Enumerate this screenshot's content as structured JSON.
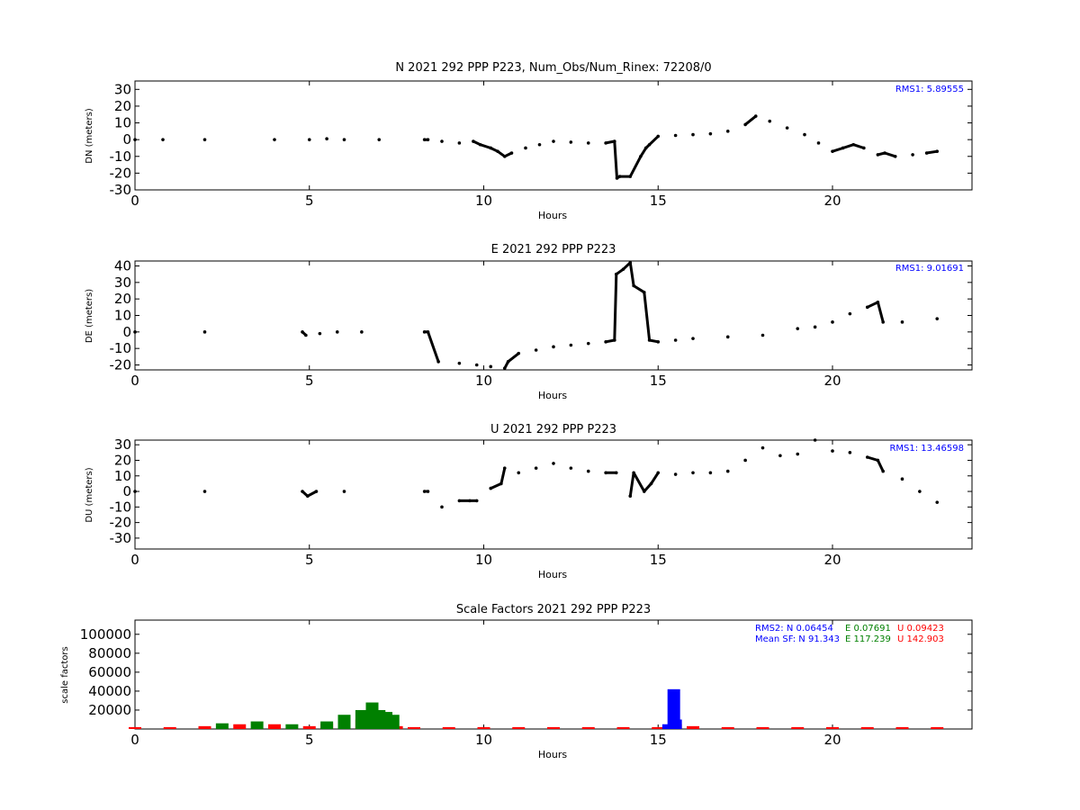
{
  "chart_data": [
    {
      "type": "scatter",
      "title": "N 2021 292 PPP  P223, Num_Obs/Num_Rinex: 72208/0",
      "xlabel": "Hours",
      "ylabel": "DN (meters)",
      "xlim": [
        0,
        24
      ],
      "ylim": [
        -30,
        35
      ],
      "xticks": [
        0,
        5,
        10,
        15,
        20
      ],
      "yticks": [
        -30,
        -20,
        -10,
        0,
        10,
        20,
        30
      ],
      "annotation": "RMS1:  5.89555",
      "annotation_color": "#0000ff",
      "series": [
        {
          "color": "#000000",
          "x": [
            0,
            0.8,
            2,
            4,
            5,
            5.5,
            6,
            7,
            8.3,
            8.4,
            8.8,
            9.3,
            9.7,
            9.9,
            10.2,
            10.4,
            10.6,
            10.8,
            11.2,
            11.6,
            12,
            12.5,
            13,
            13.5,
            13.75,
            13.82,
            13.9,
            14.2,
            14.5,
            14.65,
            14.75,
            15,
            15.5,
            16,
            16.5,
            17,
            17.5,
            17.8,
            18.2,
            18.7,
            19.2,
            19.6,
            20,
            20.3,
            20.6,
            20.9,
            21.3,
            21.5,
            21.8,
            22.3,
            22.7,
            23
          ],
          "y": [
            0,
            0,
            0,
            0,
            0,
            0.5,
            0,
            0,
            0,
            0,
            -1,
            -2,
            -1,
            -3,
            -5,
            -7,
            -10,
            -8,
            -5,
            -3,
            -1,
            -1.5,
            -2,
            -2,
            -1,
            -23,
            -22,
            -22,
            -10,
            -5,
            -3,
            2,
            2.5,
            3,
            3.5,
            5,
            9,
            14,
            11,
            7,
            3,
            -2,
            -7,
            -5,
            -3,
            -5,
            -9,
            -8,
            -10,
            -9,
            -8,
            -7
          ]
        }
      ]
    },
    {
      "type": "scatter",
      "title": "E 2021 292 PPP  P223",
      "xlabel": "Hours",
      "ylabel": "DE (meters)",
      "xlim": [
        0,
        24
      ],
      "ylim": [
        -23,
        43
      ],
      "xticks": [
        0,
        5,
        10,
        15,
        20
      ],
      "yticks": [
        -20,
        -10,
        0,
        10,
        20,
        30,
        40
      ],
      "annotation": "RMS1:  9.01691",
      "annotation_color": "#0000ff",
      "series": [
        {
          "color": "#000000",
          "x": [
            0,
            2,
            4.8,
            4.9,
            5.3,
            5.8,
            6.5,
            8.3,
            8.4,
            8.7,
            9.3,
            9.8,
            10.2,
            10.6,
            10.7,
            11,
            11.5,
            12,
            12.5,
            13,
            13.5,
            13.75,
            13.8,
            14,
            14.2,
            14.3,
            14.6,
            14.75,
            15,
            15.5,
            16,
            17,
            18,
            19,
            19.5,
            20,
            20.5,
            21,
            21.3,
            21.45,
            22,
            23
          ],
          "y": [
            0,
            0,
            0,
            -2,
            -1,
            0,
            0,
            0,
            0,
            -18,
            -19,
            -20,
            -21,
            -22,
            -18,
            -13,
            -11,
            -9,
            -8,
            -7,
            -6,
            -5,
            35,
            38,
            42,
            28,
            24,
            -5,
            -6,
            -5,
            -4,
            -3,
            -2,
            2,
            3,
            6,
            11,
            15,
            18,
            6,
            6,
            8
          ]
        }
      ]
    },
    {
      "type": "scatter",
      "title": "U 2021 292 PPP  P223",
      "xlabel": "Hours",
      "ylabel": "DU (meters)",
      "xlim": [
        0,
        24
      ],
      "ylim": [
        -37,
        33
      ],
      "xticks": [
        0,
        5,
        10,
        15,
        20
      ],
      "yticks": [
        -30,
        -20,
        -10,
        0,
        10,
        20,
        30
      ],
      "annotation": "RMS1: 13.46598",
      "annotation_color": "#0000ff",
      "series": [
        {
          "color": "#000000",
          "x": [
            0,
            2,
            4.8,
            4.95,
            5.2,
            6,
            8.3,
            8.4,
            8.8,
            9.3,
            9.6,
            9.8,
            10.2,
            10.5,
            10.6,
            11,
            11.5,
            12,
            12.5,
            13,
            13.5,
            13.8,
            14.2,
            14.3,
            14.6,
            14.8,
            15,
            15.5,
            16,
            16.5,
            17,
            17.5,
            18,
            18.5,
            19,
            19.5,
            20,
            20.5,
            21,
            21.3,
            21.45,
            22,
            22.5,
            23
          ],
          "y": [
            0,
            0,
            0,
            -3,
            0,
            0,
            0,
            0,
            -10,
            -6,
            -6,
            -6,
            2,
            5,
            15,
            12,
            15,
            18,
            15,
            13,
            12,
            12,
            -3,
            12,
            0,
            5,
            12,
            11,
            12,
            12,
            13,
            20,
            28,
            23,
            24,
            33,
            26,
            25,
            22,
            20,
            13,
            8,
            0,
            -7
          ]
        }
      ]
    },
    {
      "type": "bar",
      "title": "Scale Factors 2021 292 PPP  P223",
      "xlabel": "Hours",
      "ylabel": "scale factors",
      "xlim": [
        0,
        24
      ],
      "ylim": [
        0,
        115000
      ],
      "xticks": [
        0,
        5,
        10,
        15,
        20
      ],
      "yticks": [
        20000,
        40000,
        60000,
        80000,
        100000
      ],
      "annotations": [
        {
          "text": "RMS2: N  0.06454",
          "color": "#0000ff"
        },
        {
          "text": "E  0.07691",
          "color": "#008000"
        },
        {
          "text": "U  0.09423",
          "color": "#ff0000"
        },
        {
          "text": "Mean SF: N  91.343",
          "color": "#0000ff"
        },
        {
          "text": "E 117.239",
          "color": "#008000"
        },
        {
          "text": "U 142.903",
          "color": "#ff0000"
        }
      ],
      "series": [
        {
          "color": "#0000ff",
          "x": [
            15.3,
            15.45,
            15.5
          ],
          "values": [
            5000,
            42000,
            10000
          ]
        },
        {
          "color": "#008000",
          "x": [
            2.5,
            3.5,
            4.5,
            5.5,
            6.0,
            6.5,
            6.8,
            7.0,
            7.2,
            7.4
          ],
          "values": [
            6000,
            8000,
            5000,
            8000,
            15000,
            20000,
            28000,
            20000,
            18000,
            15000
          ]
        },
        {
          "color": "#ff0000",
          "x": [
            0,
            1,
            2,
            3,
            4,
            5,
            5.5,
            6,
            6.5,
            7,
            7.5,
            8,
            9,
            10,
            11,
            12,
            13,
            14,
            15,
            15.5,
            16,
            17,
            18,
            19,
            20,
            21,
            22,
            23
          ],
          "values": [
            2000,
            2000,
            3000,
            5000,
            5000,
            3000,
            6000,
            8000,
            10000,
            9000,
            3000,
            2000,
            2000,
            2000,
            2000,
            2000,
            2000,
            2000,
            2000,
            5000,
            3000,
            2000,
            2000,
            2000,
            2000,
            2000,
            2000,
            2000
          ]
        }
      ]
    }
  ]
}
